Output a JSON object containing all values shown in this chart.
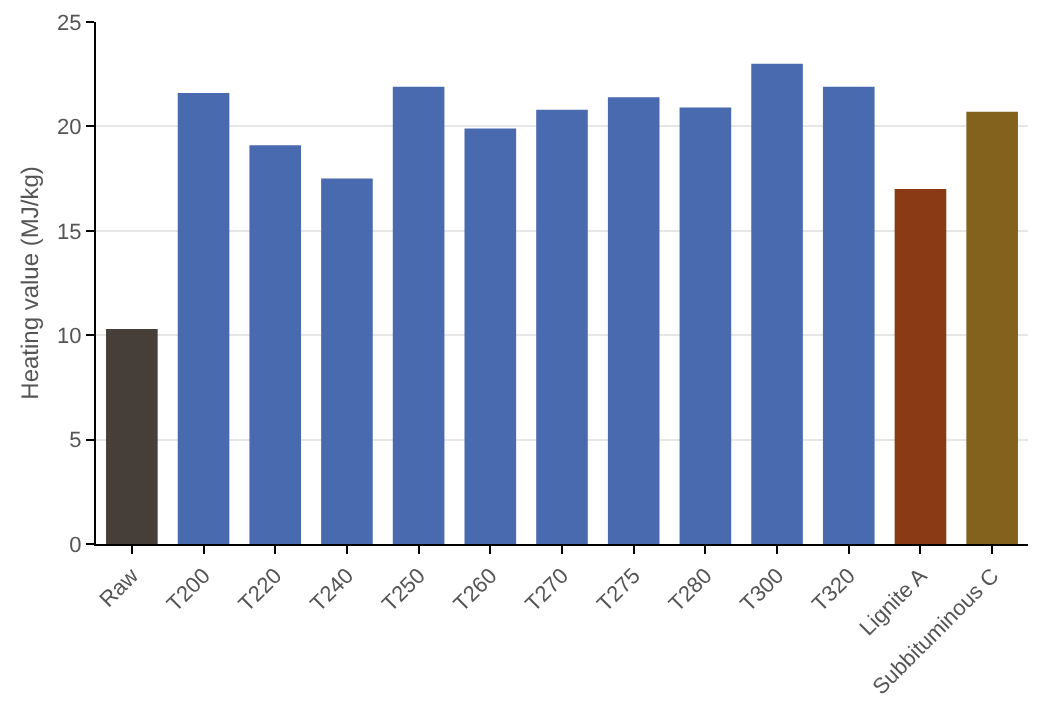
{
  "chart_data": {
    "type": "bar",
    "ylabel": "Heating value (MJ/kg)",
    "categories": [
      "Raw",
      "T200",
      "T220",
      "T240",
      "T250",
      "T260",
      "T270",
      "T275",
      "T280",
      "T300",
      "T320",
      "Lignite A",
      "Subbituminous C"
    ],
    "values": [
      10.3,
      21.6,
      19.1,
      17.5,
      21.9,
      19.9,
      20.8,
      21.4,
      20.9,
      23.0,
      21.9,
      17.0,
      20.7
    ],
    "colors": [
      "#463e39",
      "#4a6ab0",
      "#4a6ab0",
      "#4a6ab0",
      "#4a6ab0",
      "#4a6ab0",
      "#4a6ab0",
      "#4a6ab0",
      "#4a6ab0",
      "#4a6ab0",
      "#4a6ab0",
      "#8a3a14",
      "#83621e"
    ],
    "ylim": [
      0,
      25
    ],
    "yticks": [
      0,
      5,
      10,
      15,
      20,
      25
    ],
    "grid": "y"
  }
}
